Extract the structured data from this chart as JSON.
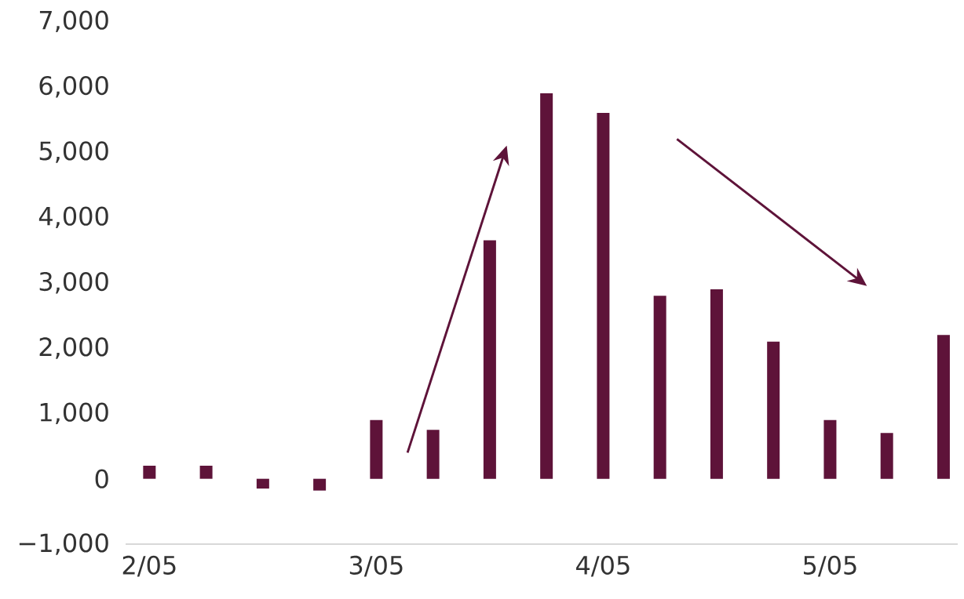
{
  "chart_data": {
    "type": "bar",
    "categories": [
      "2/05",
      null,
      null,
      null,
      "3/05",
      null,
      null,
      null,
      "4/05",
      null,
      null,
      null,
      "5/05",
      null,
      null
    ],
    "values": [
      200,
      200,
      -150,
      -180,
      900,
      750,
      3650,
      5900,
      5600,
      2800,
      2900,
      2100,
      900,
      700,
      2200
    ],
    "color": "#5e1339",
    "ylim": [
      -1000,
      7000
    ],
    "yticks": [
      {
        "value": -1000,
        "label": "−1,000"
      },
      0,
      {
        "value": 1000,
        "label": "1,000"
      },
      {
        "value": 2000,
        "label": "2,000"
      },
      {
        "value": 3000,
        "label": "3,000"
      },
      {
        "value": 4000,
        "label": "4,000"
      },
      {
        "value": 5000,
        "label": "5,000"
      },
      {
        "value": 6000,
        "label": "6,000"
      },
      {
        "value": 7000,
        "label": "7,000"
      }
    ],
    "grid": false
  }
}
